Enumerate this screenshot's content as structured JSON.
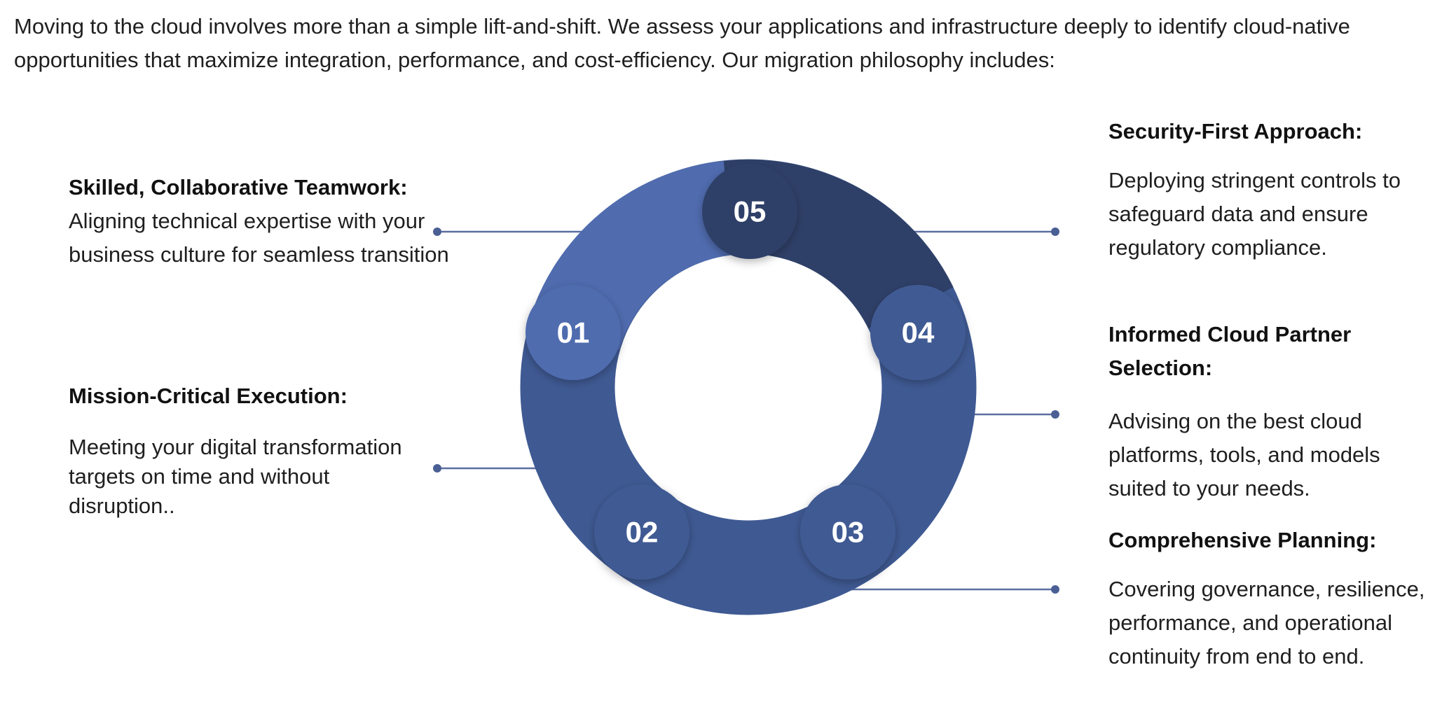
{
  "intro": "Moving to the cloud involves more than a simple lift-and-shift. We assess your applications and infrastructure deeply to identify cloud-native opportunities that maximize integration, performance, and cost-efficiency. Our migration philosophy includes:",
  "steps": [
    {
      "number": "01",
      "title": "Skilled, Collaborative Teamwork:",
      "desc": "Aligning technical expertise with your business culture for seamless transition"
    },
    {
      "number": "02",
      "title": "Mission-Critical Execution:",
      "desc": "Meeting your digital transformation targets on time and without disruption.."
    },
    {
      "number": "03",
      "title": "Comprehensive Planning:",
      "desc": "Covering governance, resilience, performance, and operational continuity from end to end."
    },
    {
      "number": "04",
      "title": "Informed Cloud Partner Selection:",
      "desc": "Advising on the best cloud platforms, tools, and models suited to your needs."
    },
    {
      "number": "05",
      "title": "Security-First Approach:",
      "desc": "Deploying stringent controls to safeguard data and ensure regulatory compliance."
    }
  ],
  "colors": {
    "ring_main": "#3f5a93",
    "segment_01": "#506caf",
    "segment_05": "#2f4068",
    "connector": "#4a5f94",
    "text": "#1f1f1f"
  }
}
